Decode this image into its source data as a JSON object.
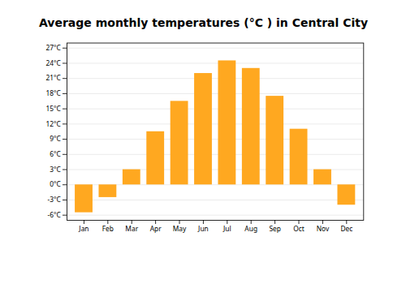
{
  "chart_data": {
    "type": "bar",
    "title": "Average monthly temperatures (°C ) in Central City",
    "categories": [
      "Jan",
      "Feb",
      "Mar",
      "Apr",
      "May",
      "Jun",
      "Jul",
      "Aug",
      "Sep",
      "Oct",
      "Nov",
      "Dec"
    ],
    "values": [
      -5.5,
      -2.5,
      3.0,
      10.5,
      16.5,
      22.0,
      24.5,
      23.0,
      17.5,
      11.0,
      3.0,
      -4.0
    ],
    "color": "#FFA820",
    "ylim": [
      -7,
      28
    ],
    "yticks": [
      {
        "value": -6,
        "label": "-6°C"
      },
      {
        "value": -3,
        "label": "-3°C"
      },
      {
        "value": 0,
        "label": "0°C"
      },
      {
        "value": 3,
        "label": "3°C"
      },
      {
        "value": 6,
        "label": "6°C"
      },
      {
        "value": 9,
        "label": "9°C"
      },
      {
        "value": 12,
        "label": "12°C"
      },
      {
        "value": 15,
        "label": "15°C"
      },
      {
        "value": 18,
        "label": "18°C"
      },
      {
        "value": 21,
        "label": "21°C"
      },
      {
        "value": 24,
        "label": "24°C"
      },
      {
        "value": 27,
        "label": "27°C"
      }
    ],
    "grid": true
  }
}
